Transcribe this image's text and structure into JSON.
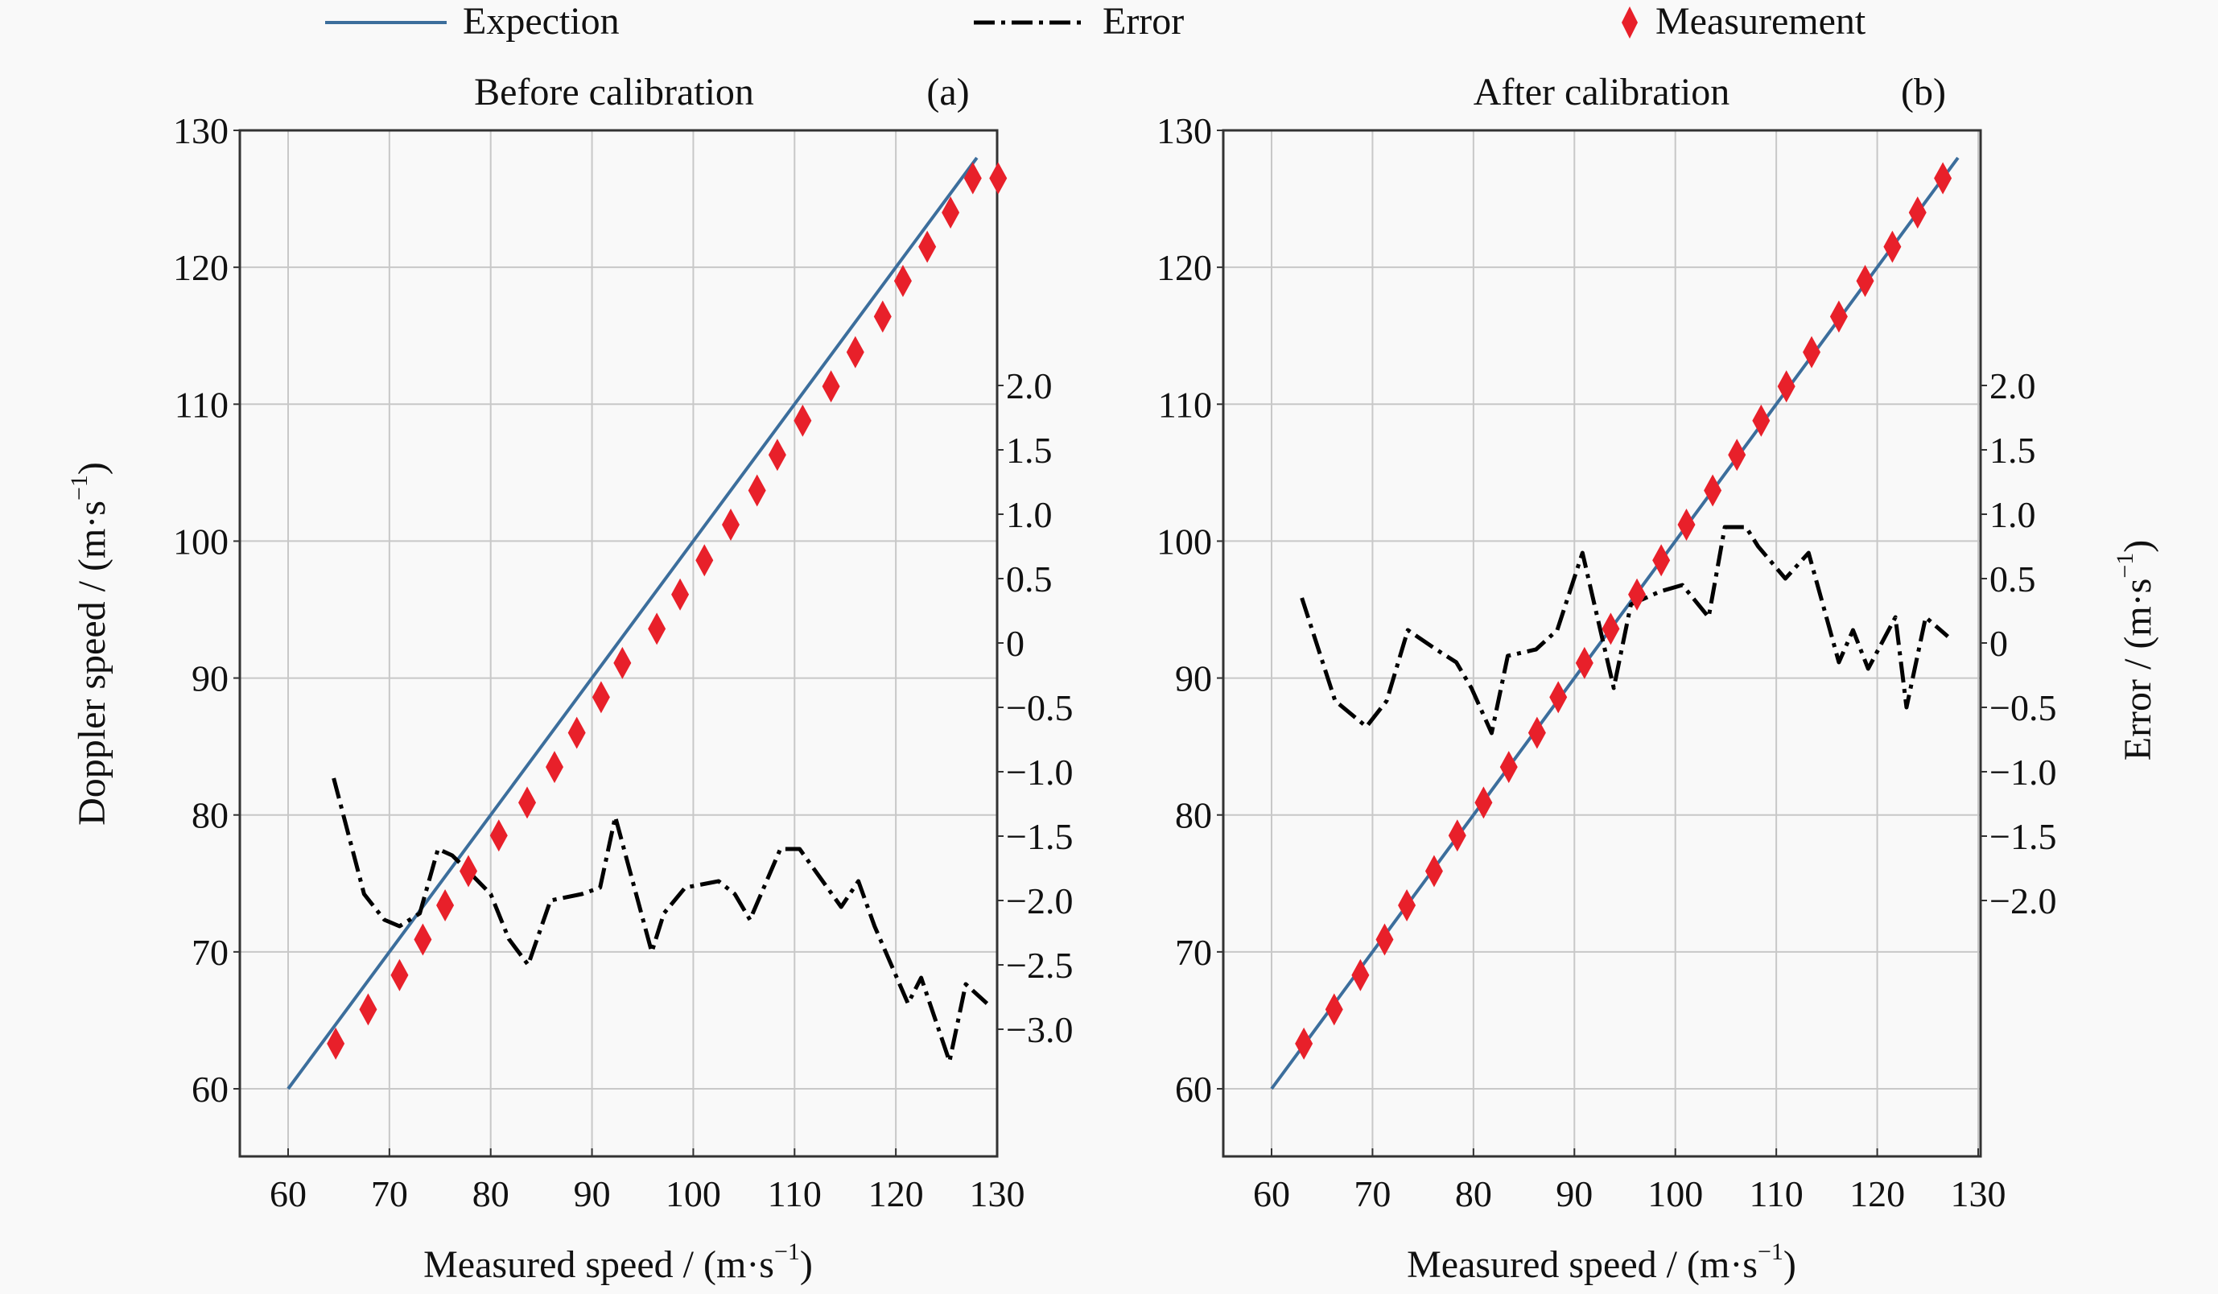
{
  "legend": {
    "items": [
      {
        "label": "Expection",
        "style": "solid-line",
        "color": "#3c6e9c"
      },
      {
        "label": "Error",
        "style": "dash-dot-line",
        "color": "#000000"
      },
      {
        "label": "Measurement",
        "style": "diamond-marker",
        "color": "#e8202a"
      }
    ],
    "placement": "top"
  },
  "chart_data": [
    {
      "type": "line",
      "panel_tag": "(a)",
      "title": "Before calibration",
      "xlabel": "Measured speed / (m·s",
      "xlabel_sup": "−1",
      "xlabel_end": ")",
      "ylabel": "Doppler speed / (m·s",
      "ylabel_sup": "−1",
      "ylabel_end": ")",
      "xlim": [
        55,
        130
      ],
      "ylim": [
        55,
        130
      ],
      "xticks": [
        "60",
        "70",
        "80",
        "90",
        "100",
        "110",
        "120",
        "130"
      ],
      "yticks": [
        "60",
        "70",
        "80",
        "90",
        "100",
        "110",
        "120",
        "130"
      ],
      "y2lim": [
        -3.8,
        2.0
      ],
      "y2ticks": [
        "2.0",
        "1.5",
        "1.0",
        "0.5",
        "0",
        "−0.5",
        "−1.0",
        "−1.5",
        "−2.0",
        "−2.5",
        "−3.0"
      ],
      "grid": true,
      "series": [
        {
          "name": "Expection",
          "axis": "left",
          "x": [
            60,
            128
          ],
          "y": [
            60,
            128
          ]
        },
        {
          "name": "Measurement",
          "axis": "left",
          "x": [
            64.7,
            67.9,
            71.0,
            73.3,
            75.5,
            77.8,
            80.8,
            83.6,
            86.3,
            88.5,
            90.9,
            93.0,
            96.4,
            98.7,
            101.1,
            103.7,
            106.3,
            108.3,
            110.8,
            113.6,
            116.0,
            118.7,
            120.7,
            123.1,
            125.4,
            127.6,
            130.1
          ],
          "y": [
            63.3,
            65.8,
            68.3,
            70.9,
            73.4,
            75.9,
            78.5,
            80.9,
            83.5,
            86.0,
            88.6,
            91.1,
            93.6,
            96.1,
            98.6,
            101.2,
            103.7,
            106.3,
            108.8,
            111.3,
            113.8,
            116.4,
            119.0,
            121.5,
            124.0,
            126.5,
            126.5
          ]
        },
        {
          "name": "Error",
          "axis": "right",
          "x": [
            64.5,
            67.5,
            69.5,
            71.0,
            73.0,
            74.8,
            76.2,
            77.5,
            80.0,
            81.8,
            83.7,
            85.9,
            89.0,
            90.8,
            92.3,
            95.9,
            97.1,
            99.2,
            102.5,
            104.1,
            105.6,
            108.6,
            110.5,
            114.6,
            116.3,
            117.9,
            121.2,
            122.5,
            125.3,
            126.9,
            129.0
          ],
          "y": [
            -1.05,
            -1.95,
            -2.15,
            -2.2,
            -2.1,
            -1.6,
            -1.65,
            -1.75,
            -1.95,
            -2.3,
            -2.5,
            -2.0,
            -1.95,
            -1.9,
            -1.35,
            -2.4,
            -2.1,
            -1.9,
            -1.85,
            -1.95,
            -2.15,
            -1.6,
            -1.6,
            -2.05,
            -1.85,
            -2.2,
            -2.8,
            -2.6,
            -3.25,
            -2.65,
            -2.8
          ]
        }
      ]
    },
    {
      "type": "line",
      "panel_tag": "(b)",
      "title": "After calibration",
      "xlabel": "Measured speed / (m·s",
      "xlabel_sup": "−1",
      "xlabel_end": ")",
      "ylabel": "Error / (m·s",
      "ylabel_sup": "−1",
      "ylabel_end": ")",
      "xlim": [
        55,
        130
      ],
      "ylim": [
        55,
        130
      ],
      "xticks": [
        "60",
        "70",
        "80",
        "90",
        "100",
        "110",
        "120",
        "130"
      ],
      "yticks": [
        "60",
        "70",
        "80",
        "90",
        "100",
        "110",
        "120",
        "130"
      ],
      "y2lim": [
        -3.8,
        2.0
      ],
      "y2ticks": [
        "2.0",
        "1.5",
        "1.0",
        "0.5",
        "0",
        "−0.5",
        "−1.0",
        "−1.5",
        "−2.0"
      ],
      "grid": true,
      "series": [
        {
          "name": "Expection",
          "axis": "left",
          "x": [
            60,
            128
          ],
          "y": [
            60,
            128
          ]
        },
        {
          "name": "Measurement",
          "axis": "left",
          "x": [
            63.2,
            66.2,
            68.8,
            71.2,
            73.4,
            76.1,
            78.4,
            81.0,
            83.5,
            86.3,
            88.4,
            91.0,
            93.6,
            96.2,
            98.6,
            101.1,
            103.7,
            106.1,
            108.5,
            111.0,
            113.5,
            116.2,
            118.8,
            121.5,
            124.0,
            126.5
          ],
          "y": [
            63.3,
            65.8,
            68.3,
            70.9,
            73.4,
            75.9,
            78.5,
            80.9,
            83.5,
            86.0,
            88.6,
            91.1,
            93.6,
            96.1,
            98.6,
            101.2,
            103.7,
            106.3,
            108.8,
            111.3,
            113.8,
            116.4,
            119.0,
            121.5,
            124.0,
            126.5
          ]
        },
        {
          "name": "Error",
          "axis": "right",
          "x": [
            63.0,
            66.3,
            69.4,
            71.4,
            73.5,
            76.3,
            78.3,
            79.8,
            81.8,
            83.4,
            86.2,
            88.3,
            90.8,
            93.9,
            95.6,
            98.5,
            100.7,
            103.3,
            104.9,
            107.0,
            108.2,
            110.9,
            113.2,
            116.2,
            117.6,
            119.1,
            121.8,
            122.9,
            124.8,
            127.0
          ],
          "y": [
            0.35,
            -0.45,
            -0.65,
            -0.45,
            0.1,
            -0.05,
            -0.15,
            -0.35,
            -0.7,
            -0.1,
            -0.05,
            0.1,
            0.7,
            -0.35,
            0.3,
            0.4,
            0.45,
            0.2,
            0.9,
            0.9,
            0.75,
            0.5,
            0.7,
            -0.15,
            0.1,
            -0.2,
            0.2,
            -0.5,
            0.2,
            0.05
          ]
        }
      ]
    }
  ]
}
